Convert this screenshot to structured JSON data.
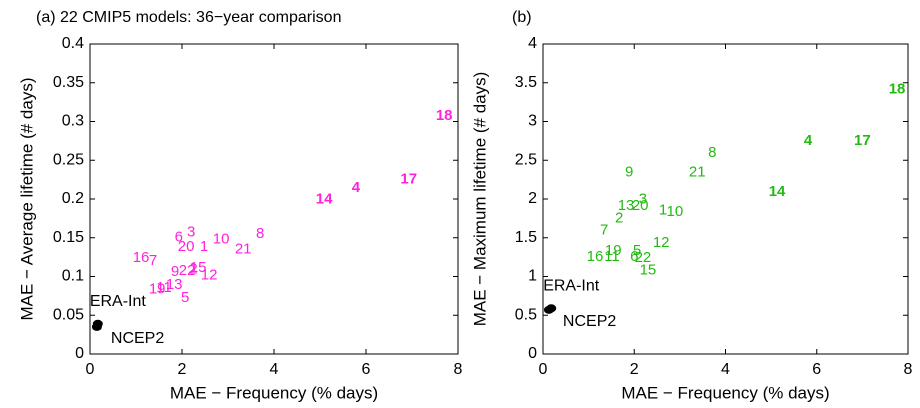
{
  "chart_data": [
    {
      "type": "scatter",
      "title": "(a) 22 CMIP5 models: 36−year comparison",
      "xlabel": "MAE − Frequency (% days)",
      "ylabel": "MAE − Average lifetime (# days)",
      "xlim": [
        0,
        8
      ],
      "ylim": [
        0,
        0.4
      ],
      "xticks": [
        0,
        2,
        4,
        6,
        8
      ],
      "yticks": [
        0,
        0.05,
        0.1,
        0.15,
        0.2,
        0.25,
        0.3,
        0.35,
        0.4
      ],
      "color": "#ff22dd",
      "reference_color": "#000000",
      "points": [
        {
          "label": "18",
          "x": 7.7,
          "y": 0.307,
          "bold": true
        },
        {
          "label": "17",
          "x": 6.93,
          "y": 0.225,
          "bold": true
        },
        {
          "label": "4",
          "x": 5.78,
          "y": 0.214,
          "bold": true
        },
        {
          "label": "14",
          "x": 5.09,
          "y": 0.199,
          "bold": true
        },
        {
          "label": "8",
          "x": 3.7,
          "y": 0.155,
          "bold": false
        },
        {
          "label": "21",
          "x": 3.33,
          "y": 0.135,
          "bold": false
        },
        {
          "label": "10",
          "x": 2.85,
          "y": 0.148,
          "bold": false
        },
        {
          "label": "1",
          "x": 2.48,
          "y": 0.138,
          "bold": false
        },
        {
          "label": "3",
          "x": 2.2,
          "y": 0.157,
          "bold": false
        },
        {
          "label": "6",
          "x": 1.93,
          "y": 0.15,
          "bold": false
        },
        {
          "label": "20",
          "x": 2.09,
          "y": 0.138,
          "bold": false
        },
        {
          "label": "16",
          "x": 1.11,
          "y": 0.124,
          "bold": false
        },
        {
          "label": "7",
          "x": 1.37,
          "y": 0.12,
          "bold": false
        },
        {
          "label": "15",
          "x": 2.35,
          "y": 0.111,
          "bold": false
        },
        {
          "label": "2",
          "x": 2.25,
          "y": 0.109,
          "bold": false
        },
        {
          "label": "22",
          "x": 2.11,
          "y": 0.107,
          "bold": false
        },
        {
          "label": "9",
          "x": 1.85,
          "y": 0.106,
          "bold": false
        },
        {
          "label": "12",
          "x": 2.59,
          "y": 0.101,
          "bold": false
        },
        {
          "label": "13",
          "x": 1.83,
          "y": 0.089,
          "bold": false
        },
        {
          "label": "11",
          "x": 1.61,
          "y": 0.085,
          "bold": false
        },
        {
          "label": "19",
          "x": 1.46,
          "y": 0.083,
          "bold": false
        },
        {
          "label": "5",
          "x": 2.07,
          "y": 0.072,
          "bold": false
        }
      ],
      "reference_points": [
        {
          "label": "ERA-Int",
          "x": 0.17,
          "y": 0.039
        },
        {
          "label": "NCEP2",
          "x": 0.15,
          "y": 0.035
        }
      ]
    },
    {
      "type": "scatter",
      "title": "(b)",
      "xlabel": "MAE − Frequency (% days)",
      "ylabel": "MAE − Maximum lifetime (# days)",
      "xlim": [
        0,
        8
      ],
      "ylim": [
        0,
        4
      ],
      "xticks": [
        0,
        2,
        4,
        6,
        8
      ],
      "yticks": [
        0,
        0.5,
        1,
        1.5,
        2,
        2.5,
        3,
        3.5,
        4
      ],
      "color": "#22bb11",
      "reference_color": "#000000",
      "points": [
        {
          "label": "18",
          "x": 7.76,
          "y": 3.41,
          "bold": true
        },
        {
          "label": "17",
          "x": 7.0,
          "y": 2.75,
          "bold": true
        },
        {
          "label": "4",
          "x": 5.81,
          "y": 2.75,
          "bold": true
        },
        {
          "label": "14",
          "x": 5.13,
          "y": 2.09,
          "bold": true
        },
        {
          "label": "8",
          "x": 3.71,
          "y": 2.59,
          "bold": false
        },
        {
          "label": "21",
          "x": 3.38,
          "y": 2.34,
          "bold": false
        },
        {
          "label": "9",
          "x": 1.89,
          "y": 2.34,
          "bold": false
        },
        {
          "label": "3",
          "x": 2.19,
          "y": 1.99,
          "bold": false
        },
        {
          "label": "13",
          "x": 1.82,
          "y": 1.91,
          "bold": false
        },
        {
          "label": "20",
          "x": 2.13,
          "y": 1.91,
          "bold": false
        },
        {
          "label": "1",
          "x": 2.63,
          "y": 1.85,
          "bold": false
        },
        {
          "label": "10",
          "x": 2.89,
          "y": 1.83,
          "bold": false
        },
        {
          "label": "2",
          "x": 1.67,
          "y": 1.75,
          "bold": false
        },
        {
          "label": "7",
          "x": 1.34,
          "y": 1.59,
          "bold": false
        },
        {
          "label": "12",
          "x": 2.59,
          "y": 1.43,
          "bold": false
        },
        {
          "label": "19",
          "x": 1.54,
          "y": 1.33,
          "bold": false
        },
        {
          "label": "16",
          "x": 1.14,
          "y": 1.25,
          "bold": false
        },
        {
          "label": "11",
          "x": 1.51,
          "y": 1.25,
          "bold": false
        },
        {
          "label": "6",
          "x": 2.0,
          "y": 1.25,
          "bold": false
        },
        {
          "label": "5",
          "x": 2.06,
          "y": 1.33,
          "bold": false
        },
        {
          "label": "22",
          "x": 2.19,
          "y": 1.24,
          "bold": false
        },
        {
          "label": "15",
          "x": 2.3,
          "y": 1.08,
          "bold": false
        }
      ],
      "reference_points": [
        {
          "label": "ERA-Int",
          "x": 0.18,
          "y": 0.59
        },
        {
          "label": "NCEP2",
          "x": 0.13,
          "y": 0.57
        }
      ]
    }
  ]
}
